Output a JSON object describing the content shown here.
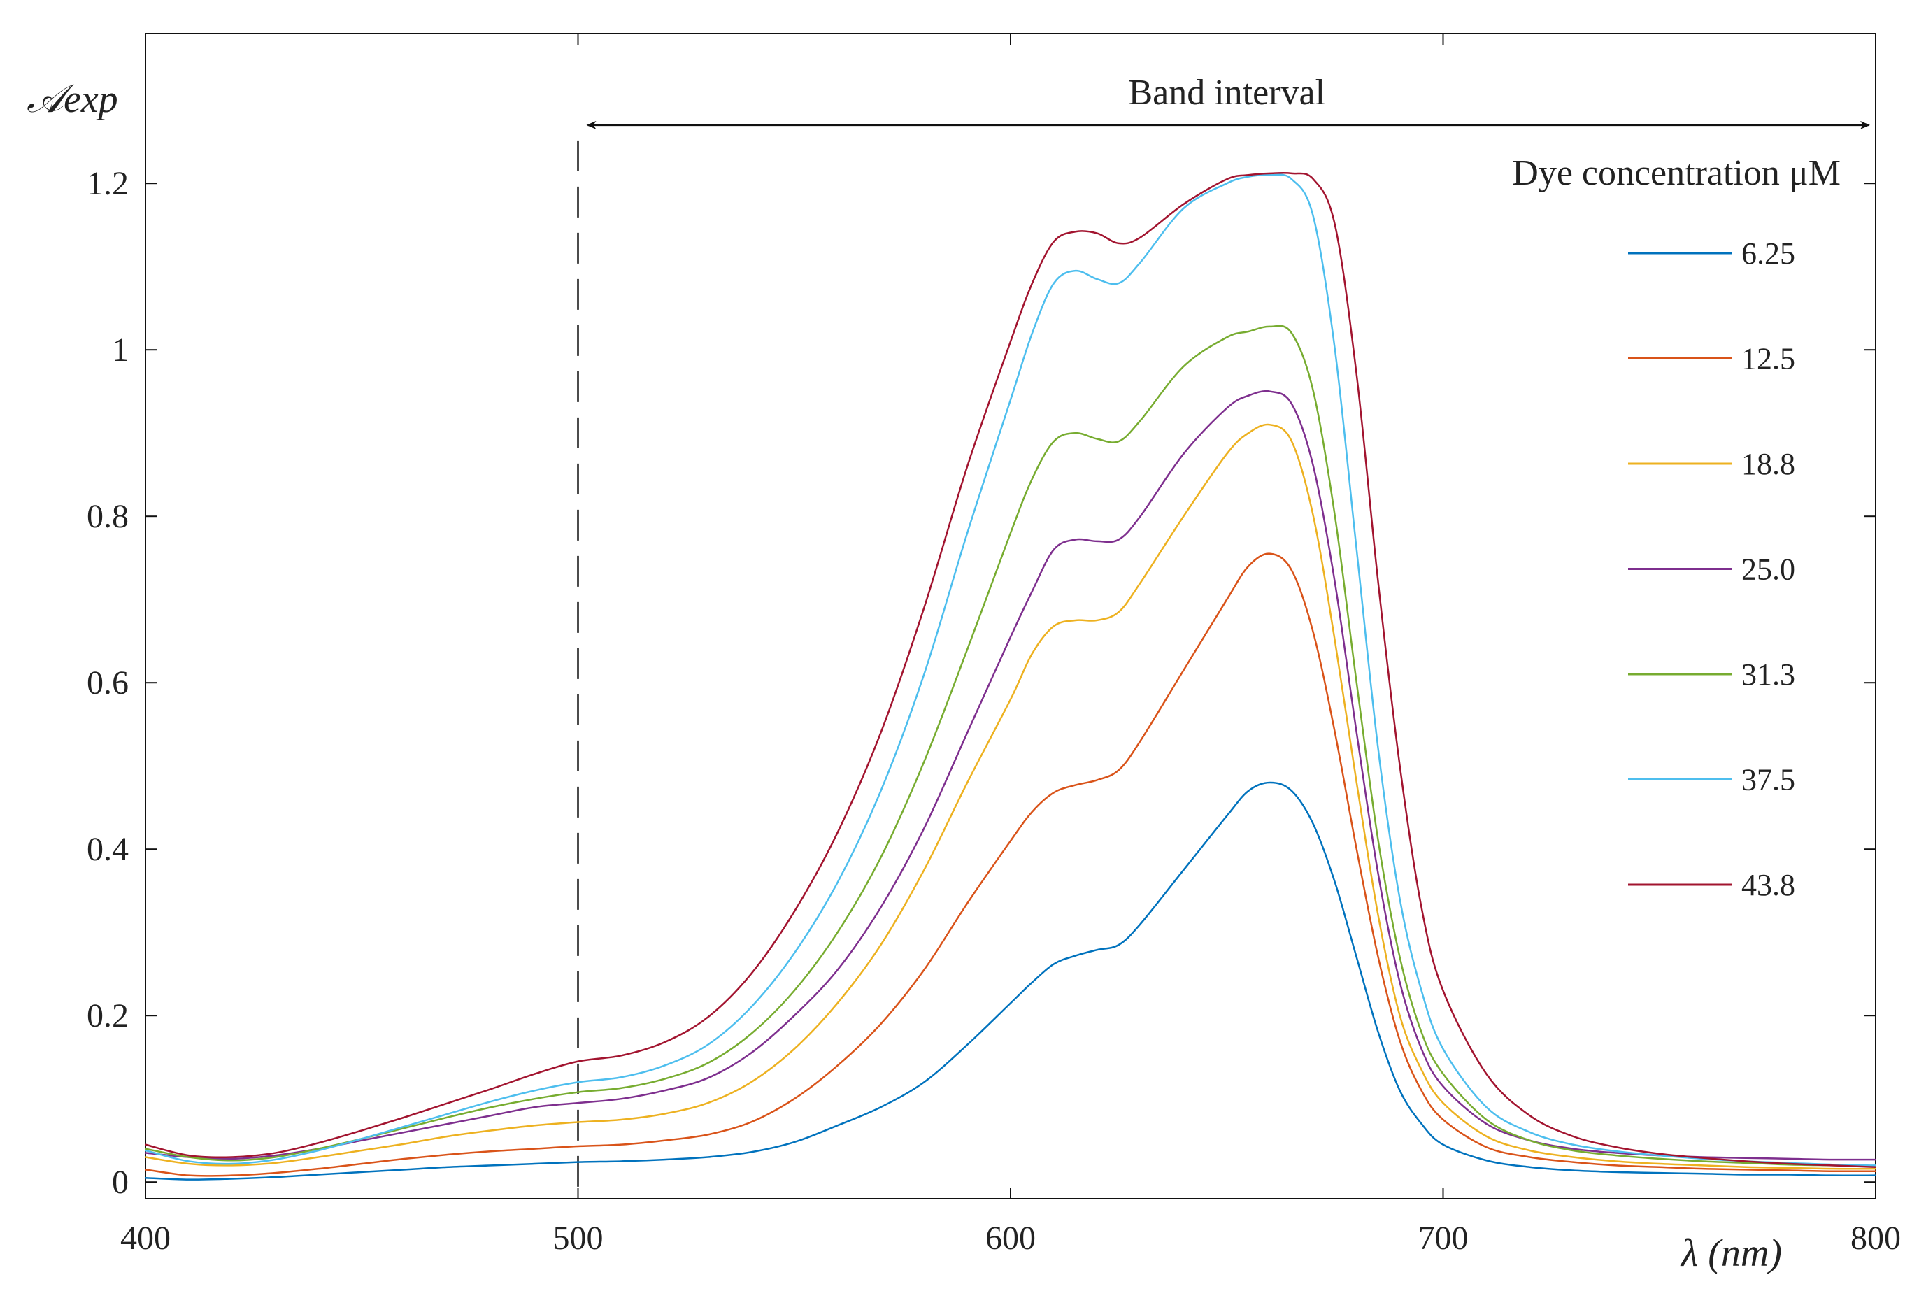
{
  "chart_data": {
    "type": "line",
    "xlabel": "λ (nm)",
    "ylabel": "𝒜exp",
    "xlim": [
      400,
      800
    ],
    "ylim": [
      -0.02,
      1.38
    ],
    "xticks": [
      400,
      500,
      600,
      700,
      800
    ],
    "xtick_labels": [
      "400",
      "500",
      "600",
      "700",
      "800"
    ],
    "yticks": [
      0,
      0.2,
      0.4,
      0.6,
      0.8,
      1.0,
      1.2
    ],
    "ytick_labels": [
      "0",
      "0.2",
      "0.4",
      "0.6",
      "0.8",
      "1",
      "1.2"
    ],
    "grid": false,
    "legend_title": "Dye concentration μM",
    "legend_placement": "right",
    "annotation": {
      "text": "Band interval",
      "from_x": 500,
      "to_x": 800,
      "y": 1.27,
      "marker_line_x": 500
    },
    "x": [
      400,
      410,
      420,
      430,
      440,
      450,
      460,
      470,
      480,
      490,
      500,
      510,
      520,
      530,
      540,
      550,
      560,
      570,
      580,
      590,
      600,
      605,
      610,
      615,
      620,
      625,
      630,
      640,
      650,
      655,
      660,
      665,
      670,
      675,
      680,
      685,
      690,
      695,
      700,
      710,
      720,
      730,
      740,
      750,
      760,
      770,
      780,
      790,
      800
    ],
    "series": [
      {
        "name": "6.25",
        "color": "#0072BD",
        "values": [
          0.005,
          0.003,
          0.004,
          0.006,
          0.009,
          0.012,
          0.015,
          0.018,
          0.02,
          0.022,
          0.024,
          0.025,
          0.027,
          0.03,
          0.036,
          0.048,
          0.068,
          0.09,
          0.12,
          0.165,
          0.215,
          0.24,
          0.262,
          0.272,
          0.279,
          0.285,
          0.31,
          0.375,
          0.44,
          0.47,
          0.48,
          0.47,
          0.43,
          0.36,
          0.27,
          0.18,
          0.11,
          0.07,
          0.045,
          0.026,
          0.018,
          0.014,
          0.012,
          0.011,
          0.01,
          0.009,
          0.009,
          0.008,
          0.008
        ]
      },
      {
        "name": "12.5",
        "color": "#D95319",
        "values": [
          0.015,
          0.008,
          0.008,
          0.011,
          0.016,
          0.022,
          0.028,
          0.033,
          0.037,
          0.04,
          0.043,
          0.045,
          0.05,
          0.057,
          0.072,
          0.1,
          0.14,
          0.19,
          0.255,
          0.335,
          0.41,
          0.445,
          0.468,
          0.477,
          0.483,
          0.495,
          0.53,
          0.615,
          0.7,
          0.74,
          0.755,
          0.735,
          0.66,
          0.54,
          0.4,
          0.27,
          0.17,
          0.11,
          0.075,
          0.042,
          0.03,
          0.024,
          0.02,
          0.018,
          0.016,
          0.015,
          0.014,
          0.013,
          0.013
        ]
      },
      {
        "name": "18.8",
        "color": "#EDB120",
        "values": [
          0.03,
          0.022,
          0.02,
          0.023,
          0.03,
          0.038,
          0.046,
          0.055,
          0.062,
          0.068,
          0.072,
          0.075,
          0.082,
          0.095,
          0.12,
          0.16,
          0.215,
          0.285,
          0.375,
          0.48,
          0.58,
          0.635,
          0.668,
          0.675,
          0.675,
          0.685,
          0.72,
          0.8,
          0.875,
          0.9,
          0.91,
          0.89,
          0.8,
          0.65,
          0.48,
          0.32,
          0.2,
          0.135,
          0.095,
          0.055,
          0.038,
          0.03,
          0.025,
          0.022,
          0.02,
          0.018,
          0.017,
          0.016,
          0.016
        ]
      },
      {
        "name": "25.0",
        "color": "#7E2F8E",
        "values": [
          0.035,
          0.03,
          0.028,
          0.032,
          0.04,
          0.05,
          0.06,
          0.07,
          0.08,
          0.09,
          0.095,
          0.1,
          0.11,
          0.125,
          0.155,
          0.2,
          0.255,
          0.33,
          0.425,
          0.54,
          0.655,
          0.71,
          0.76,
          0.772,
          0.77,
          0.772,
          0.8,
          0.875,
          0.93,
          0.945,
          0.95,
          0.935,
          0.86,
          0.72,
          0.54,
          0.37,
          0.24,
          0.16,
          0.115,
          0.07,
          0.05,
          0.04,
          0.035,
          0.032,
          0.03,
          0.029,
          0.028,
          0.027,
          0.027
        ]
      },
      {
        "name": "31.3",
        "color": "#77AC30",
        "values": [
          0.04,
          0.03,
          0.026,
          0.03,
          0.04,
          0.052,
          0.065,
          0.078,
          0.09,
          0.1,
          0.108,
          0.113,
          0.124,
          0.143,
          0.178,
          0.23,
          0.3,
          0.39,
          0.505,
          0.64,
          0.78,
          0.845,
          0.89,
          0.9,
          0.893,
          0.89,
          0.915,
          0.98,
          1.015,
          1.022,
          1.028,
          1.02,
          0.95,
          0.8,
          0.6,
          0.41,
          0.27,
          0.18,
          0.13,
          0.075,
          0.05,
          0.038,
          0.032,
          0.028,
          0.025,
          0.023,
          0.021,
          0.02,
          0.019
        ]
      },
      {
        "name": "37.5",
        "color": "#4DBEEE",
        "values": [
          0.038,
          0.025,
          0.022,
          0.027,
          0.038,
          0.052,
          0.067,
          0.082,
          0.097,
          0.11,
          0.12,
          0.126,
          0.14,
          0.165,
          0.21,
          0.275,
          0.36,
          0.47,
          0.61,
          0.78,
          0.94,
          1.02,
          1.08,
          1.095,
          1.085,
          1.08,
          1.105,
          1.17,
          1.2,
          1.208,
          1.21,
          1.205,
          1.16,
          1.0,
          0.76,
          0.52,
          0.34,
          0.23,
          0.16,
          0.09,
          0.06,
          0.045,
          0.037,
          0.032,
          0.028,
          0.025,
          0.023,
          0.021,
          0.02
        ]
      },
      {
        "name": "43.8",
        "color": "#A2142F",
        "values": [
          0.045,
          0.032,
          0.03,
          0.035,
          0.047,
          0.062,
          0.078,
          0.095,
          0.112,
          0.13,
          0.145,
          0.152,
          0.168,
          0.198,
          0.25,
          0.325,
          0.42,
          0.54,
          0.69,
          0.86,
          1.01,
          1.08,
          1.13,
          1.142,
          1.14,
          1.128,
          1.135,
          1.175,
          1.205,
          1.21,
          1.212,
          1.212,
          1.205,
          1.15,
          0.97,
          0.72,
          0.5,
          0.33,
          0.23,
          0.13,
          0.08,
          0.055,
          0.042,
          0.034,
          0.029,
          0.025,
          0.022,
          0.02,
          0.018
        ]
      }
    ]
  }
}
